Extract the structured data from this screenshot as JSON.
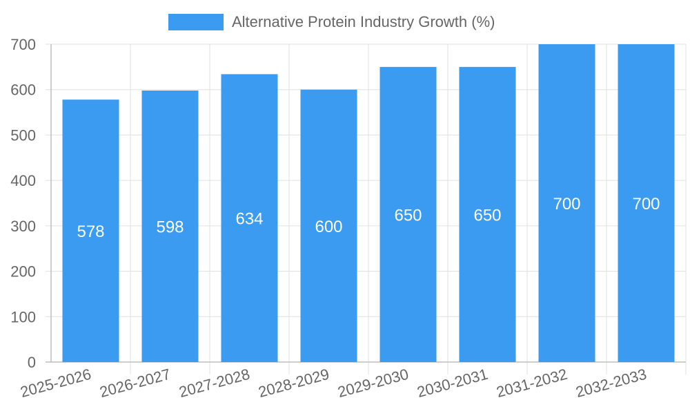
{
  "chart_data": {
    "type": "bar",
    "categories": [
      "2025-2026",
      "2026-2027",
      "2027-2028",
      "2028-2029",
      "2029-2030",
      "2030-2031",
      "2031-2032",
      "2032-2033"
    ],
    "series": [
      {
        "name": "Alternative Protein Industry Growth (%)",
        "values": [
          578,
          598,
          634,
          600,
          650,
          650,
          700,
          700
        ],
        "color": "#3a9bf0"
      }
    ],
    "data_labels": [
      "578",
      "598",
      "634",
      "600",
      "650",
      "650",
      "700",
      "700"
    ],
    "ylim": [
      0,
      700
    ],
    "y_ticks": [
      0,
      100,
      200,
      300,
      400,
      500,
      600,
      700
    ],
    "grid": true,
    "legend_position": "top-center",
    "xlabel": "",
    "ylabel": "",
    "title": ""
  }
}
